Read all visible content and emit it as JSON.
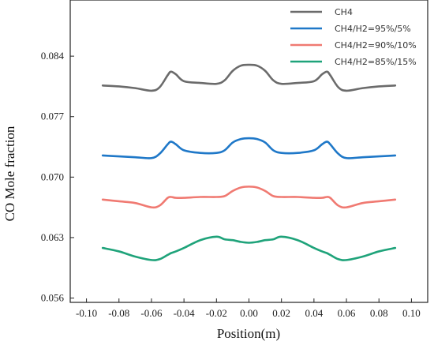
{
  "chart_data": {
    "type": "line",
    "title": "",
    "xlabel": "Position(m)",
    "ylabel": "CO Mole fraction",
    "xlim": [
      -0.11,
      0.11
    ],
    "ylim": [
      0.0555,
      0.0905
    ],
    "x_ticks": [
      "-0.10",
      "-0.08",
      "-0.06",
      "-0.04",
      "-0.02",
      "0.00",
      "0.02",
      "0.04",
      "0.06",
      "0.08",
      "0.10"
    ],
    "x_tick_values": [
      -0.1,
      -0.08,
      -0.06,
      -0.04,
      -0.02,
      0.0,
      0.02,
      0.04,
      0.06,
      0.08,
      0.1
    ],
    "y_ticks": [
      "0.056",
      "0.063",
      "0.070",
      "0.077",
      "0.084"
    ],
    "y_tick_values": [
      0.056,
      0.063,
      0.07,
      0.077,
      0.084
    ],
    "grid": false,
    "legend_position": "top-right",
    "x": [
      -0.09,
      -0.08,
      -0.07,
      -0.06,
      -0.055,
      -0.05,
      -0.048,
      -0.045,
      -0.04,
      -0.03,
      -0.02,
      -0.015,
      -0.01,
      -0.005,
      0.0,
      0.005,
      0.01,
      0.015,
      0.02,
      0.03,
      0.04,
      0.045,
      0.048,
      0.05,
      0.055,
      0.06,
      0.07,
      0.08,
      0.09
    ],
    "series": [
      {
        "name": "CH4",
        "color": "#6b6b6b",
        "values": [
          0.0806,
          0.0805,
          0.0803,
          0.08,
          0.0804,
          0.0818,
          0.0822,
          0.0819,
          0.0811,
          0.0809,
          0.0808,
          0.0812,
          0.0823,
          0.0829,
          0.083,
          0.0829,
          0.0823,
          0.0812,
          0.0808,
          0.0809,
          0.0811,
          0.0819,
          0.0822,
          0.0818,
          0.0804,
          0.08,
          0.0803,
          0.0805,
          0.0806
        ]
      },
      {
        "name": "CH4/H2=95%/5%",
        "color": "#1f78c8",
        "values": [
          0.0725,
          0.0724,
          0.0723,
          0.0722,
          0.0727,
          0.0738,
          0.0741,
          0.0738,
          0.0731,
          0.0728,
          0.0728,
          0.0731,
          0.074,
          0.0744,
          0.0745,
          0.0744,
          0.074,
          0.0731,
          0.0728,
          0.0728,
          0.0731,
          0.0738,
          0.0741,
          0.0738,
          0.0727,
          0.0722,
          0.0723,
          0.0724,
          0.0725
        ]
      },
      {
        "name": "CH4/H2=90%/10%",
        "color": "#f07a72",
        "values": [
          0.0674,
          0.0672,
          0.067,
          0.0665,
          0.0667,
          0.0676,
          0.0677,
          0.0676,
          0.0676,
          0.0677,
          0.0677,
          0.0678,
          0.0684,
          0.0688,
          0.0689,
          0.0688,
          0.0684,
          0.0678,
          0.0677,
          0.0677,
          0.0676,
          0.0676,
          0.0677,
          0.0676,
          0.0667,
          0.0665,
          0.067,
          0.0672,
          0.0674
        ]
      },
      {
        "name": "CH4/H2=85%/15%",
        "color": "#1fa37a",
        "values": [
          0.0618,
          0.0614,
          0.0608,
          0.0604,
          0.0605,
          0.061,
          0.0612,
          0.0614,
          0.0618,
          0.0627,
          0.0631,
          0.0628,
          0.0627,
          0.0625,
          0.0624,
          0.0625,
          0.0627,
          0.0628,
          0.0631,
          0.0627,
          0.0618,
          0.0614,
          0.0612,
          0.061,
          0.0605,
          0.0604,
          0.0608,
          0.0614,
          0.0618
        ]
      }
    ]
  }
}
